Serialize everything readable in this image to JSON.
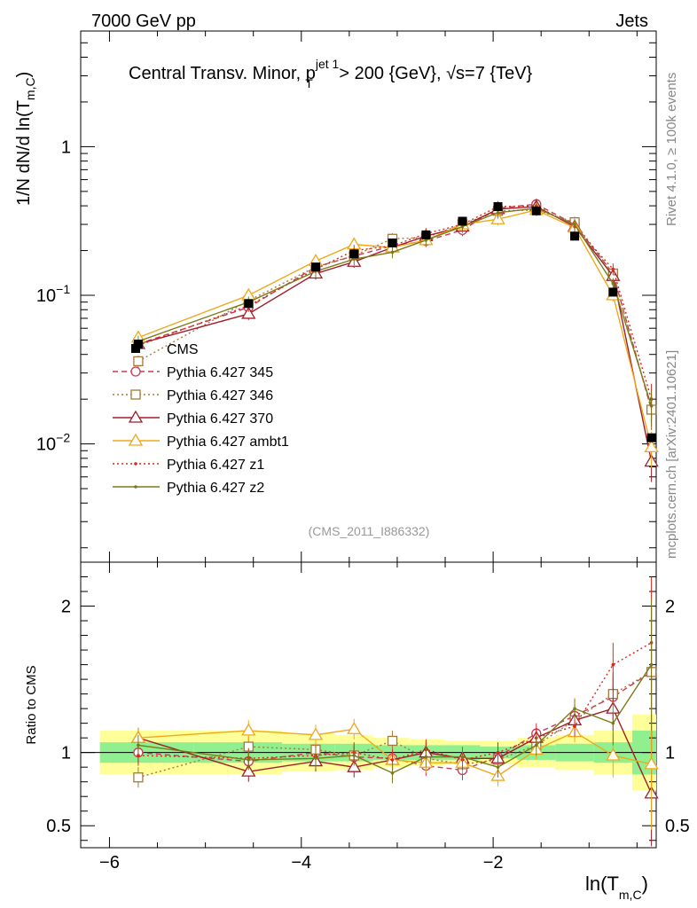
{
  "header": {
    "left": "7000 GeV pp",
    "right": "Jets"
  },
  "side_labels": {
    "rivet": "Rivet 4.1.0, ≥ 100k events",
    "mcplots": "mcplots.cern.ch [arXiv:2401.10621]"
  },
  "chart_data": {
    "type": "line",
    "title": "Central Transv. Minor, p_T^{jet 1} > 200 {GeV}, √s=7 {TeV}",
    "title_parts": {
      "main": "Central Transv. Minor, p",
      "sup": "jet 1",
      "sub": "T",
      "rest": " > 200 {GeV}, √s=7 {TeV}"
    },
    "watermark": "(CMS_2011_I886332)",
    "xlabel": "ln(T_m,C)",
    "xlabel_parts": {
      "main": "ln(T",
      "sub": "m,C",
      "close": ")"
    },
    "ylabel": "1/N dN/d ln(T_m,C)",
    "ylabel_parts": {
      "main": "1/N    dN/d ln(T",
      "sub": "m,C",
      "close": ")"
    },
    "ratio_ylabel": "Ratio to CMS",
    "xlim": [
      -6.3,
      -0.3
    ],
    "ylim_main": [
      0.0016,
      6.0
    ],
    "ylim_ratio": [
      0.35,
      2.3
    ],
    "xticks": [
      {
        "v": -6,
        "label": "−6"
      },
      {
        "v": -4,
        "label": "−4"
      },
      {
        "v": -2,
        "label": "−2"
      }
    ],
    "yticks_main": [
      {
        "v": 1,
        "label": "1"
      },
      {
        "v": 0.1,
        "label": "10",
        "exp": "−1"
      },
      {
        "v": 0.01,
        "label": "10",
        "exp": "−2"
      }
    ],
    "yticks_ratio": [
      {
        "v": 2,
        "label": "2"
      },
      {
        "v": 1,
        "label": "1"
      },
      {
        "v": 0.5,
        "label": "0.5"
      }
    ],
    "x": [
      -5.7,
      -4.55,
      -3.85,
      -3.45,
      -3.05,
      -2.7,
      -2.32,
      -1.95,
      -1.55,
      -1.15,
      -0.75,
      -0.35
    ],
    "data": {
      "name": "CMS",
      "values": [
        0.047,
        0.088,
        0.155,
        0.19,
        0.225,
        0.255,
        0.315,
        0.395,
        0.37,
        0.25,
        0.105,
        0.011
      ],
      "band_inner": [
        0.07,
        0.07,
        0.06,
        0.06,
        0.05,
        0.05,
        0.05,
        0.04,
        0.05,
        0.06,
        0.07,
        0.15
      ],
      "band_outer": [
        0.15,
        0.15,
        0.13,
        0.12,
        0.1,
        0.09,
        0.08,
        0.08,
        0.1,
        0.12,
        0.15,
        0.26
      ]
    },
    "series": [
      {
        "name": "Pythia 6.427 345",
        "color": "#c8385a",
        "dash": "6,4",
        "marker": "circle",
        "values": [
          0.047,
          0.083,
          0.155,
          0.184,
          0.215,
          0.232,
          0.275,
          0.385,
          0.41,
          0.3,
          0.14,
          0.017
        ],
        "ratio": [
          1.0,
          0.94,
          1.0,
          0.97,
          0.96,
          0.91,
          0.88,
          0.97,
          1.13,
          1.25,
          1.38,
          1.55
        ]
      },
      {
        "name": "Pythia 6.427 346",
        "color": "#a67838",
        "dash": "2,3",
        "marker": "square",
        "values": [
          0.036,
          0.092,
          0.155,
          0.185,
          0.24,
          0.245,
          0.3,
          0.37,
          0.375,
          0.31,
          0.14,
          0.017
        ],
        "ratio": [
          0.83,
          1.04,
          1.02,
          0.98,
          1.08,
          0.96,
          0.92,
          0.95,
          1.05,
          1.22,
          1.4,
          1.55
        ]
      },
      {
        "name": "Pythia 6.427 370",
        "color": "#a01e2a",
        "dash": "",
        "marker": "triangle",
        "values": [
          0.047,
          0.075,
          0.14,
          0.168,
          0.21,
          0.25,
          0.29,
          0.38,
          0.395,
          0.29,
          0.135,
          0.0076
        ],
        "ratio": [
          1.1,
          0.87,
          0.94,
          0.9,
          0.95,
          1.0,
          0.96,
          0.96,
          1.1,
          1.22,
          1.3,
          0.72
        ]
      },
      {
        "name": "Pythia 6.427 ambt1",
        "color": "#f0a81a",
        "dash": "",
        "marker": "triangle",
        "values": [
          0.052,
          0.1,
          0.17,
          0.22,
          0.21,
          0.235,
          0.3,
          0.325,
          0.375,
          0.285,
          0.1,
          0.0095
        ],
        "ratio": [
          1.1,
          1.15,
          1.12,
          1.16,
          0.95,
          0.93,
          0.93,
          0.84,
          1.02,
          1.14,
          0.98,
          0.92
        ]
      },
      {
        "name": "Pythia 6.427 z1",
        "color": "#d8281a",
        "dash": "2,3",
        "marker": "dot",
        "values": [
          0.046,
          0.085,
          0.15,
          0.2,
          0.215,
          0.26,
          0.3,
          0.395,
          0.4,
          0.29,
          0.15,
          0.02
        ],
        "ratio": [
          0.98,
          0.96,
          0.98,
          1.0,
          0.95,
          1.02,
          0.95,
          1.0,
          1.1,
          1.18,
          1.6,
          1.75
        ]
      },
      {
        "name": "Pythia 6.427 z2",
        "color": "#7a7a18",
        "dash": "",
        "marker": "dot",
        "values": [
          0.049,
          0.09,
          0.145,
          0.175,
          0.195,
          0.235,
          0.29,
          0.36,
          0.385,
          0.3,
          0.12,
          0.018
        ],
        "ratio": [
          1.05,
          0.95,
          0.96,
          0.98,
          0.86,
          0.97,
          0.97,
          0.9,
          1.05,
          1.3,
          1.2,
          1.6
        ]
      }
    ]
  }
}
